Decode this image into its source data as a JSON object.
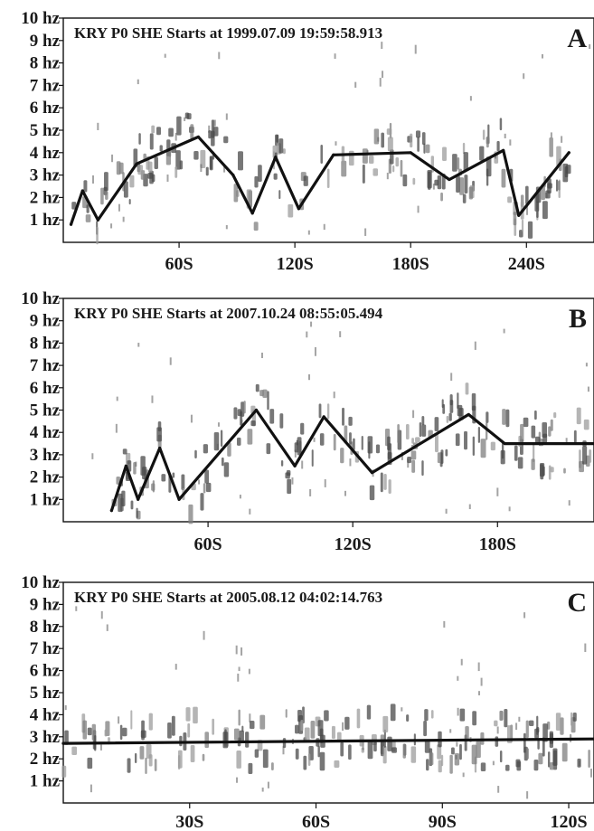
{
  "figure": {
    "panels": [
      {
        "panel_label": "A",
        "header": "KRY P0 SHE  Starts at 1999.07.09 19:59:58.913",
        "y_tick_labels": [
          "10 hz",
          "9 hz",
          "8 hz",
          "7 hz",
          "6 hz",
          "5 hz",
          "4 hz",
          "3 hz",
          "2 hz",
          "1 hz"
        ],
        "x_tick_labels": [
          "60S",
          "120S",
          "180S",
          "240S"
        ]
      },
      {
        "panel_label": "B",
        "header": "KRY P0 SHE  Starts at 2007.10.24 08:55:05.494",
        "y_tick_labels": [
          "10 hz",
          "9 hz",
          "8 hz",
          "7 hz",
          "6 hz",
          "5 hz",
          "4 hz",
          "3 hz",
          "2 hz",
          "1 hz"
        ],
        "x_tick_labels": [
          "60S",
          "120S",
          "180S"
        ]
      },
      {
        "panel_label": "C",
        "header": "KRY P0 SHE  Starts at 2005.08.12 04:02:14.763",
        "y_tick_labels": [
          "10 hz",
          "9 hz",
          "8 hz",
          "7 hz",
          "6 hz",
          "5 hz",
          "4 hz",
          "3 hz",
          "2 hz",
          "1 hz"
        ],
        "x_tick_labels": [
          "30S",
          "60S",
          "90S",
          "120S"
        ]
      }
    ]
  },
  "chart_data": [
    {
      "type": "line",
      "title": "KRY P0 SHE  Starts at 1999.07.09 19:59:58.913",
      "panel": "A",
      "x_unit": "s",
      "y_unit": "hz",
      "xlim": [
        0,
        275
      ],
      "ylim": [
        0,
        10
      ],
      "x_ticks": [
        60,
        120,
        180,
        240
      ],
      "y_ticks": [
        1,
        2,
        3,
        4,
        5,
        6,
        7,
        8,
        9,
        10
      ],
      "line_x": [
        4,
        10,
        18,
        38,
        70,
        88,
        98,
        110,
        122,
        140,
        180,
        200,
        228,
        236,
        262
      ],
      "line_y": [
        0.8,
        2.3,
        1.0,
        3.5,
        4.7,
        3.0,
        1.3,
        3.8,
        1.5,
        3.9,
        4.0,
        2.8,
        4.1,
        1.2,
        4.0
      ],
      "grid": false
    },
    {
      "type": "line",
      "title": "KRY P0 SHE  Starts at 2007.10.24 08:55:05.494",
      "panel": "B",
      "x_unit": "s",
      "y_unit": "hz",
      "xlim": [
        0,
        220
      ],
      "ylim": [
        0,
        10
      ],
      "x_ticks": [
        60,
        120,
        180
      ],
      "y_ticks": [
        1,
        2,
        3,
        4,
        5,
        6,
        7,
        8,
        9,
        10
      ],
      "line_x": [
        20,
        26,
        31,
        40,
        48,
        80,
        96,
        108,
        128,
        168,
        183,
        220
      ],
      "line_y": [
        0.5,
        2.5,
        1.0,
        3.3,
        1.0,
        5.0,
        2.5,
        4.7,
        2.2,
        4.8,
        3.5,
        3.5
      ],
      "grid": false
    },
    {
      "type": "line",
      "title": "KRY P0 SHE  Starts at 2005.08.12 04:02:14.763",
      "panel": "C",
      "x_unit": "s",
      "y_unit": "hz",
      "xlim": [
        0,
        126
      ],
      "ylim": [
        0,
        10
      ],
      "x_ticks": [
        30,
        60,
        90,
        120
      ],
      "y_ticks": [
        1,
        2,
        3,
        4,
        5,
        6,
        7,
        8,
        9,
        10
      ],
      "line_x": [
        0,
        126
      ],
      "line_y": [
        2.7,
        2.9
      ],
      "grid": false
    }
  ]
}
